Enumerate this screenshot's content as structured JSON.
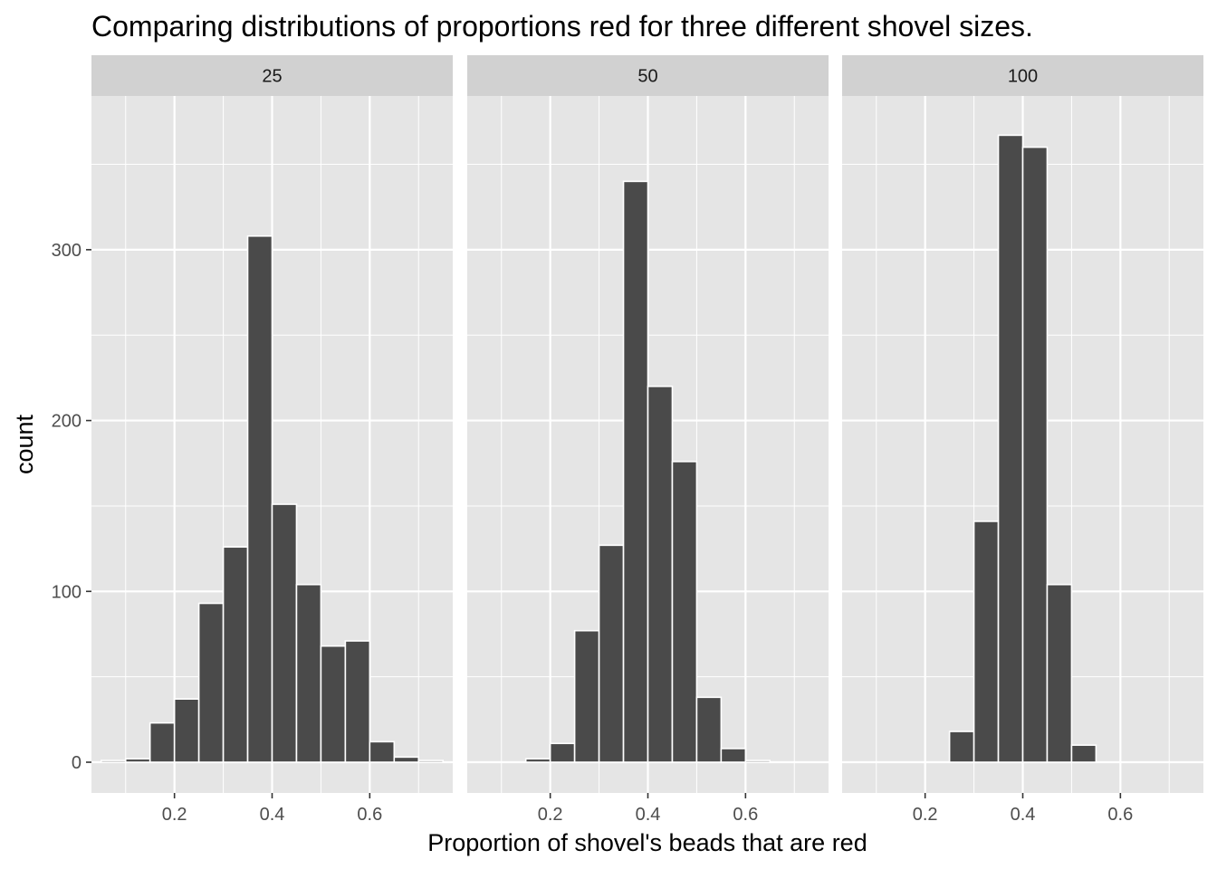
{
  "chart_data": {
    "type": "histogram",
    "title": "Comparing distributions of proportions red for three different shovel sizes.",
    "xlabel": "Proportion of shovel's beads that are red",
    "ylabel": "count",
    "xlim": [
      0.03,
      0.77
    ],
    "ylim": [
      -18,
      390
    ],
    "x_ticks": [
      0.2,
      0.4,
      0.6
    ],
    "x_tick_labels": [
      "0.2",
      "0.4",
      "0.6"
    ],
    "y_ticks": [
      0,
      100,
      200,
      300
    ],
    "y_tick_labels": [
      "0",
      "100",
      "200",
      "300"
    ],
    "bin_width": 0.05,
    "bin_starts": [
      0.05,
      0.1,
      0.15,
      0.2,
      0.25,
      0.3,
      0.35,
      0.4,
      0.45,
      0.5,
      0.55,
      0.6,
      0.65,
      0.7
    ],
    "facets": [
      {
        "label": "25",
        "values": [
          1,
          2,
          23,
          37,
          93,
          126,
          308,
          151,
          104,
          68,
          71,
          12,
          3,
          1
        ]
      },
      {
        "label": "50",
        "values": [
          0,
          0,
          2,
          11,
          77,
          127,
          340,
          220,
          176,
          38,
          8,
          1,
          0,
          0
        ]
      },
      {
        "label": "100",
        "values": [
          0,
          0,
          0,
          0,
          18,
          141,
          367,
          360,
          104,
          10,
          0,
          0,
          0,
          0
        ]
      }
    ],
    "colors": {
      "panel_bg": "#e5e5e5",
      "grid": "#ffffff",
      "strip_bg": "#d1d1d1",
      "bar_fill": "#4a4a4a",
      "bar_stroke": "#ffffff",
      "tick_text": "#4d4d4d"
    }
  }
}
